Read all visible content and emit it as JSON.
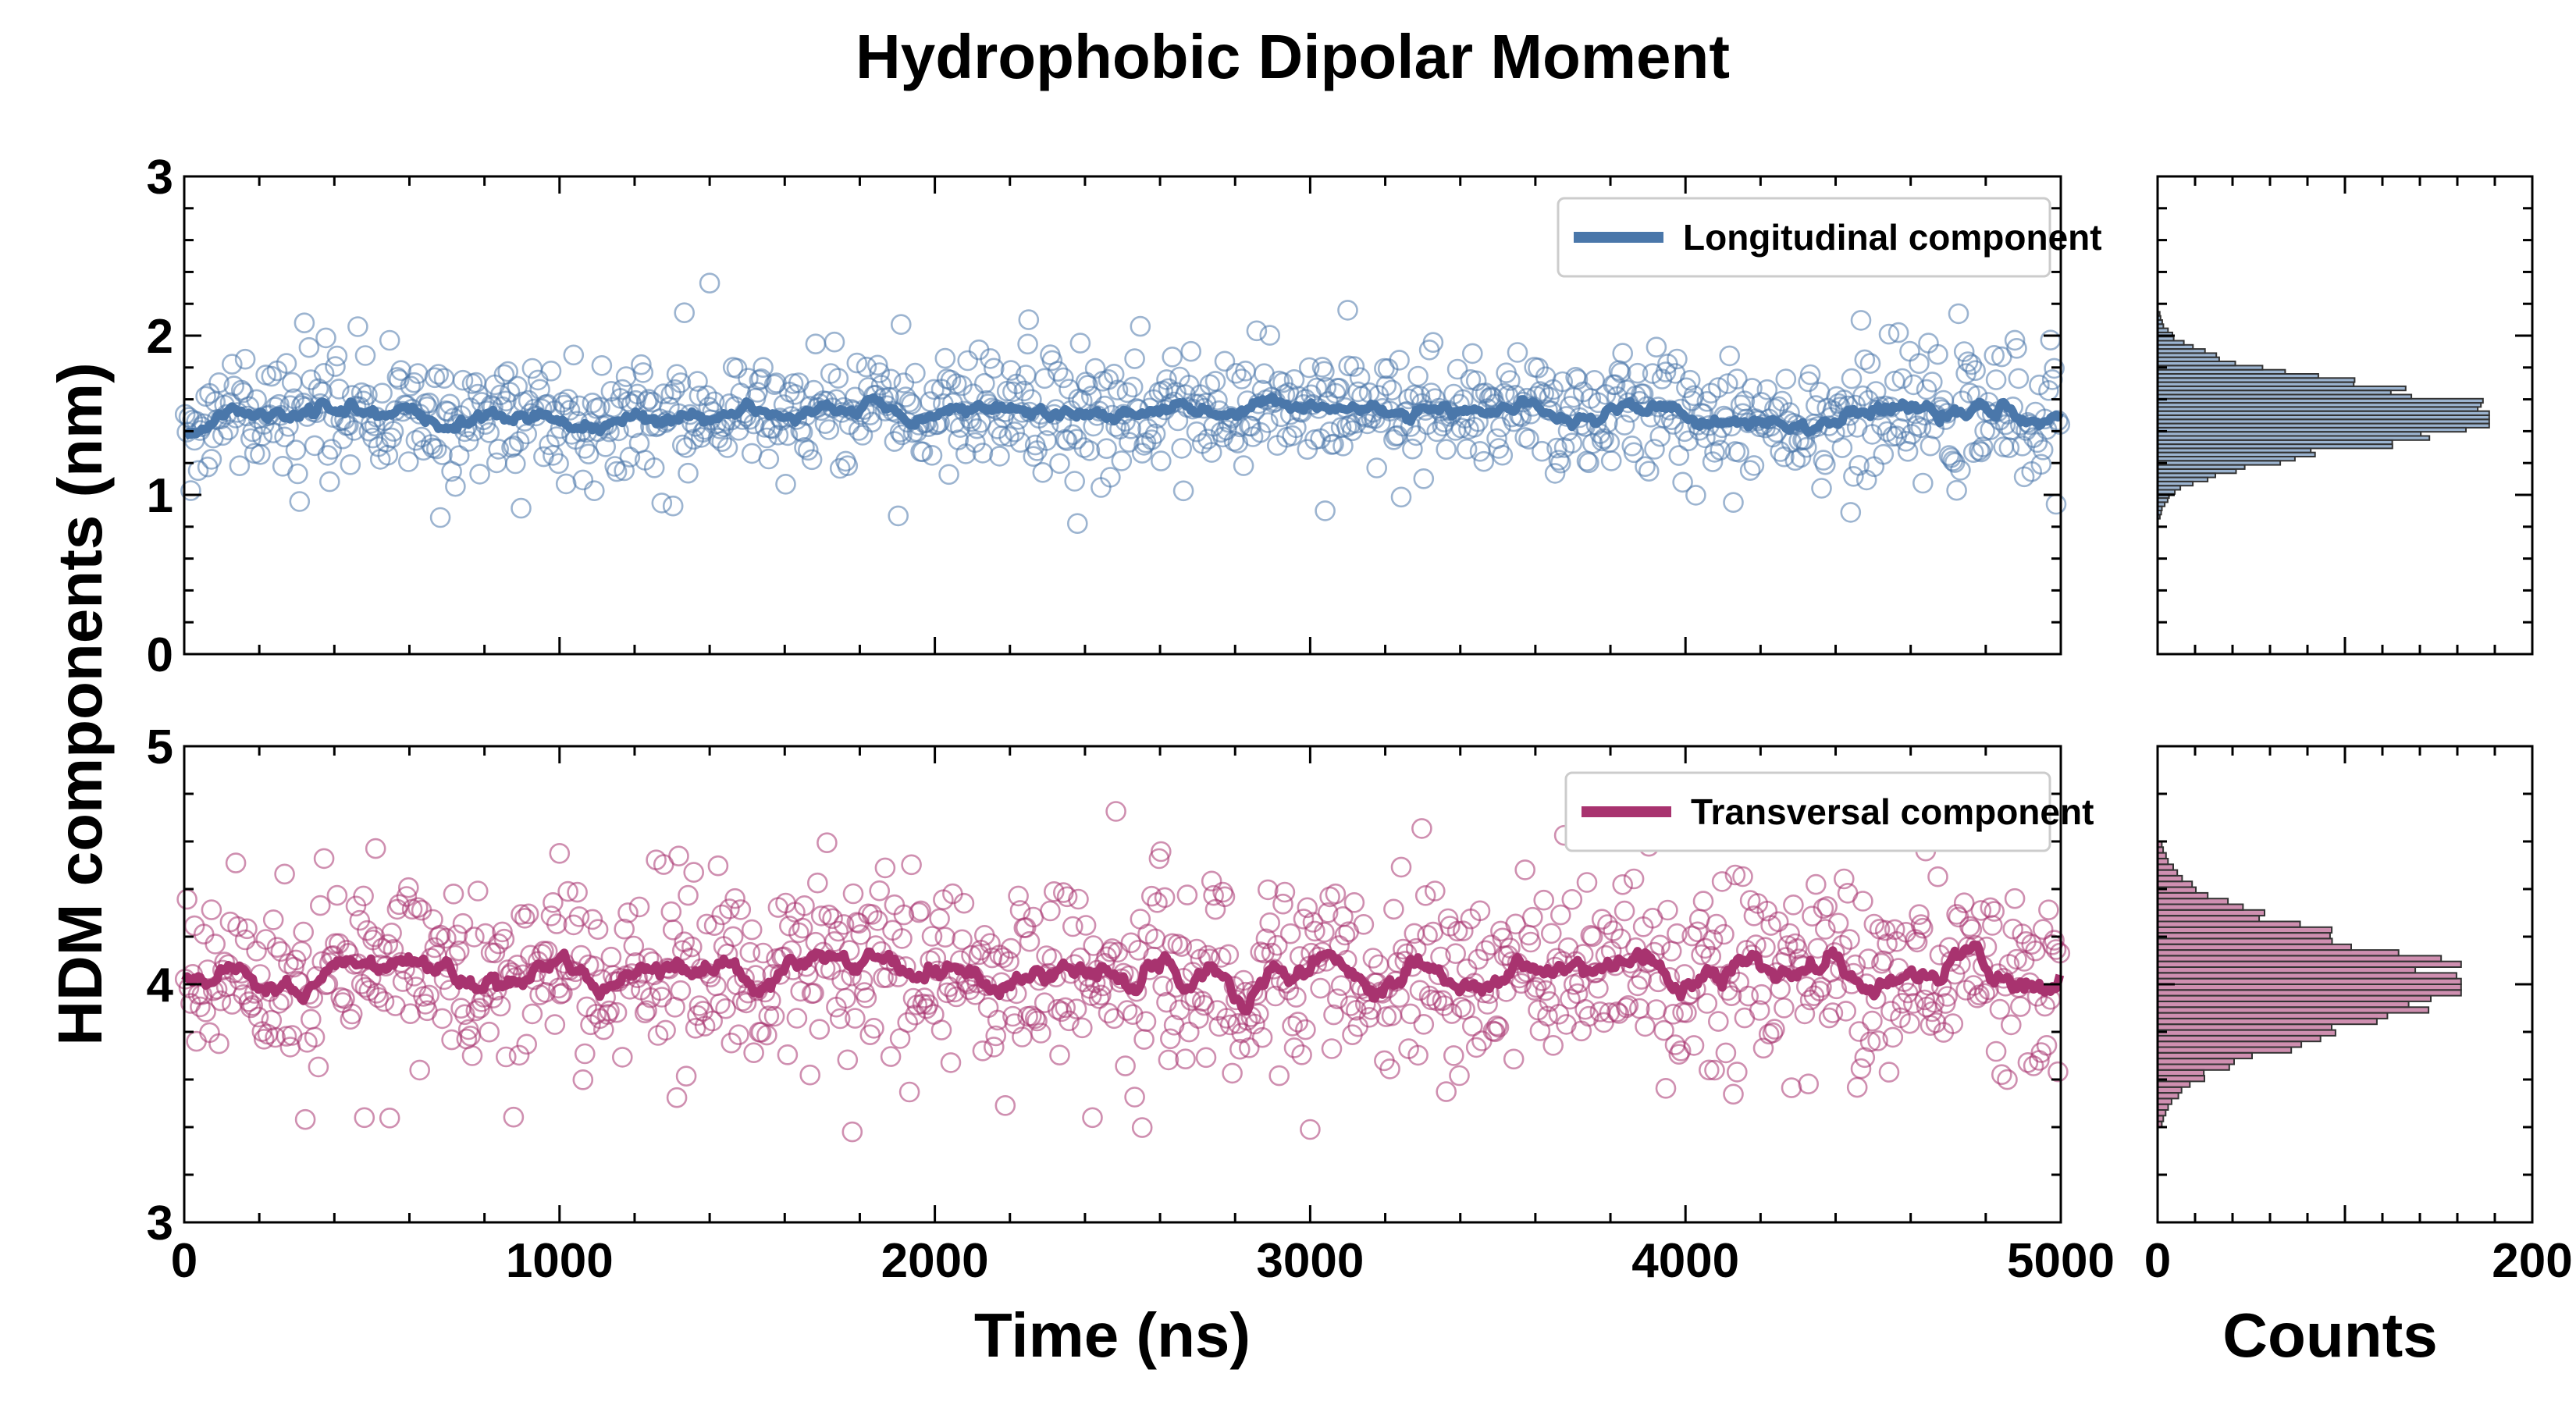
{
  "title": "Hydrophobic Dipolar Moment",
  "ylabel": "HDM components (nm)",
  "xlabel": "Time (ns)",
  "hist_xlabel": "Counts",
  "colors": {
    "longitudinal": "#4a77aa",
    "transversal": "#a8336f"
  },
  "chart_data": [
    {
      "type": "scatter",
      "panel": "top-left",
      "legend": "Longitudinal component",
      "legend_position": "top-right",
      "xlim": [
        0,
        5000
      ],
      "ylim": [
        0,
        3
      ],
      "xticks": [
        "0",
        "1000",
        "2000",
        "3000",
        "4000",
        "5000"
      ],
      "yticks": [
        "0",
        "1",
        "2",
        "3"
      ],
      "n_points": 1000,
      "mean": 1.5,
      "std": 0.2,
      "running_mean_line": true,
      "outliers": [
        [
          1400,
          2.33
        ],
        [
          1910,
          2.07
        ],
        [
          2250,
          2.1
        ],
        [
          3100,
          2.16
        ],
        [
          320,
          2.08
        ],
        [
          2380,
          0.82
        ],
        [
          4440,
          0.89
        ],
        [
          3040,
          0.9
        ]
      ]
    },
    {
      "type": "histogram",
      "panel": "top-right",
      "orientation": "horizontal",
      "xlim": [
        0,
        200
      ],
      "ylim": [
        0,
        3
      ],
      "bin_range": [
        0.85,
        2.15
      ],
      "peak_count": 177,
      "peak_center": 1.5
    },
    {
      "type": "scatter",
      "panel": "bottom-left",
      "legend": "Transversal component",
      "legend_position": "top-right",
      "xlim": [
        0,
        5000
      ],
      "ylim": [
        3,
        5
      ],
      "xticks": [
        "0",
        "1000",
        "2000",
        "3000",
        "4000",
        "5000"
      ],
      "yticks": [
        "3",
        "4",
        "5"
      ],
      "n_points": 1000,
      "mean": 4.05,
      "std": 0.2,
      "running_mean_line": true,
      "outliers": [
        [
          510,
          4.57
        ],
        [
          1780,
          3.38
        ],
        [
          3000,
          3.39
        ],
        [
          2420,
          3.44
        ],
        [
          480,
          3.44
        ],
        [
          4640,
          4.56
        ],
        [
          1000,
          4.55
        ]
      ]
    },
    {
      "type": "histogram",
      "panel": "bottom-right",
      "orientation": "horizontal",
      "xlim": [
        0,
        200
      ],
      "ylim": [
        3,
        5
      ],
      "bin_range": [
        3.4,
        4.6
      ],
      "peak_count": 162,
      "peak_center": 4.0
    }
  ],
  "hist_xticks": [
    "0",
    "200"
  ]
}
